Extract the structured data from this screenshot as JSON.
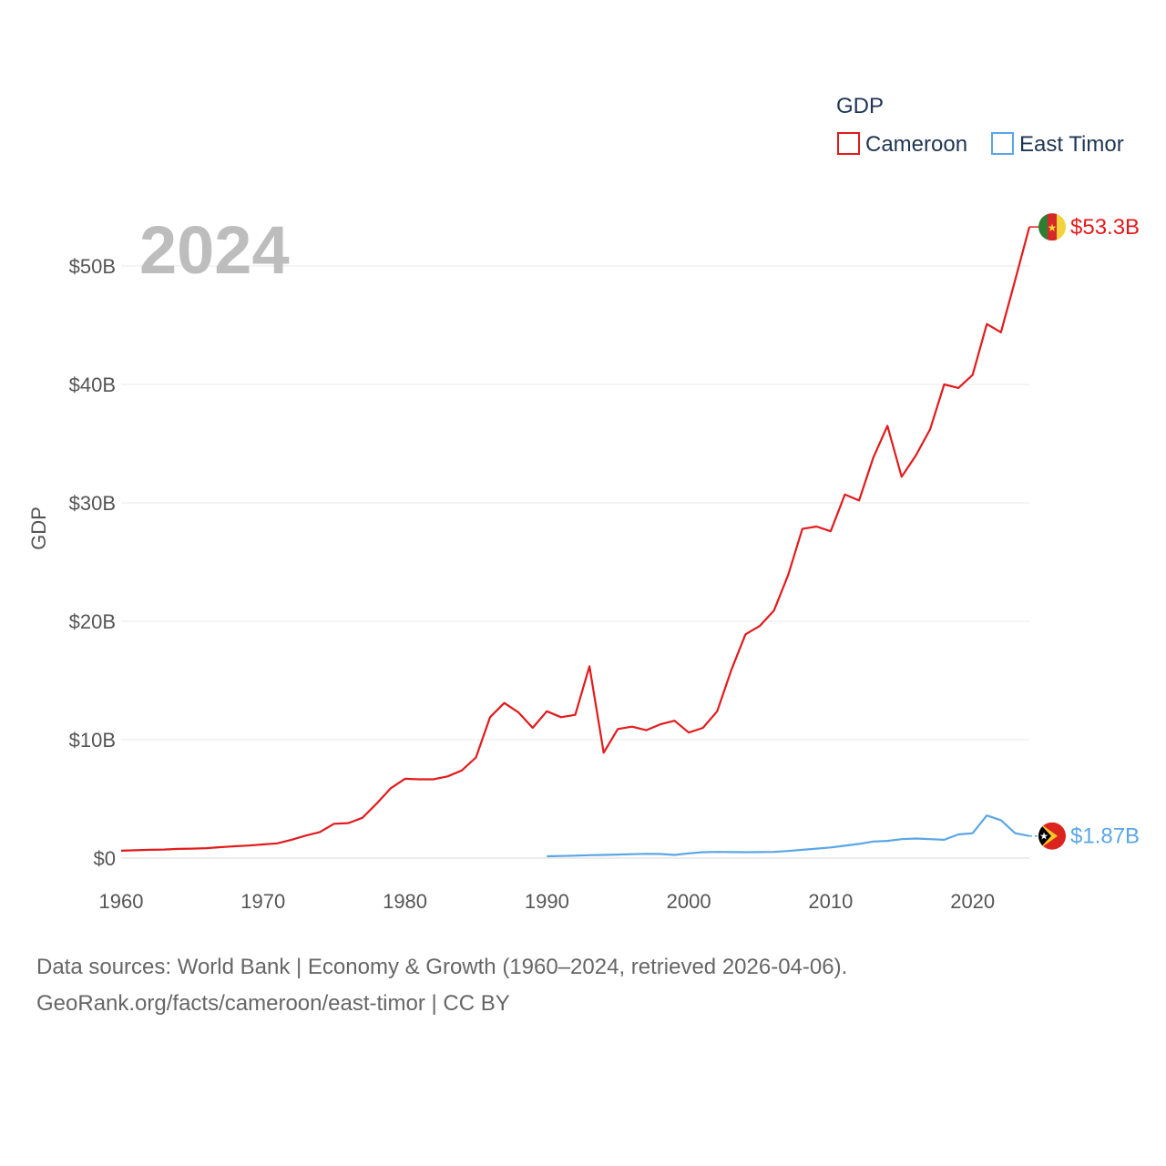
{
  "chart_data": {
    "type": "line",
    "title": "",
    "ylabel": "GDP",
    "xlabel": "",
    "highlight_year": "2024",
    "legend": {
      "title": "GDP",
      "position": "top-right"
    },
    "xlim": [
      1960,
      2024
    ],
    "ylim": [
      0,
      55
    ],
    "x_ticks": [
      1960,
      1970,
      1980,
      1990,
      2000,
      2010,
      2020
    ],
    "y_ticks": [
      {
        "value": 0,
        "label": "$0"
      },
      {
        "value": 10,
        "label": "$10B"
      },
      {
        "value": 20,
        "label": "$20B"
      },
      {
        "value": 30,
        "label": "$30B"
      },
      {
        "value": 40,
        "label": "$40B"
      },
      {
        "value": 50,
        "label": "$50B"
      }
    ],
    "units": "billions USD",
    "grid": true,
    "series": [
      {
        "name": "Cameroon",
        "color": "#e31a1c",
        "end_label": "$53.3B",
        "flag": "cameroon-flag",
        "x": [
          1960,
          1961,
          1962,
          1963,
          1964,
          1965,
          1966,
          1967,
          1968,
          1969,
          1970,
          1971,
          1972,
          1973,
          1974,
          1975,
          1976,
          1977,
          1978,
          1979,
          1980,
          1981,
          1982,
          1983,
          1984,
          1985,
          1986,
          1987,
          1988,
          1989,
          1990,
          1991,
          1992,
          1993,
          1994,
          1995,
          1996,
          1997,
          1998,
          1999,
          2000,
          2001,
          2002,
          2003,
          2004,
          2005,
          2006,
          2007,
          2008,
          2009,
          2010,
          2011,
          2012,
          2013,
          2014,
          2015,
          2016,
          2017,
          2018,
          2019,
          2020,
          2021,
          2022,
          2023,
          2024
        ],
        "values": [
          0.62,
          0.66,
          0.7,
          0.72,
          0.78,
          0.8,
          0.84,
          0.92,
          1.0,
          1.06,
          1.15,
          1.25,
          1.55,
          1.9,
          2.2,
          2.9,
          2.95,
          3.4,
          4.6,
          5.9,
          6.7,
          6.65,
          6.65,
          6.9,
          7.4,
          8.5,
          11.9,
          13.1,
          12.3,
          11.0,
          12.4,
          11.9,
          12.1,
          16.2,
          8.9,
          10.9,
          11.1,
          10.8,
          11.3,
          11.6,
          10.6,
          11.0,
          12.4,
          15.9,
          18.9,
          19.6,
          20.9,
          23.9,
          27.8,
          28.0,
          27.6,
          30.7,
          30.2,
          33.8,
          36.5,
          32.2,
          34.0,
          36.2,
          40.0,
          39.7,
          40.8,
          45.1,
          44.4,
          48.8,
          53.3
        ]
      },
      {
        "name": "East Timor",
        "color": "#5aa6e6",
        "end_label": "$1.87B",
        "flag": "east-timor-flag",
        "x": [
          1990,
          1991,
          1992,
          1993,
          1994,
          1995,
          1996,
          1997,
          1998,
          1999,
          2000,
          2001,
          2002,
          2003,
          2004,
          2005,
          2006,
          2007,
          2008,
          2009,
          2010,
          2011,
          2012,
          2013,
          2014,
          2015,
          2016,
          2017,
          2018,
          2019,
          2020,
          2021,
          2022,
          2023,
          2024
        ],
        "values": [
          0.15,
          0.18,
          0.21,
          0.25,
          0.27,
          0.3,
          0.33,
          0.36,
          0.35,
          0.27,
          0.4,
          0.5,
          0.52,
          0.51,
          0.5,
          0.51,
          0.52,
          0.6,
          0.7,
          0.8,
          0.9,
          1.05,
          1.2,
          1.4,
          1.45,
          1.6,
          1.65,
          1.6,
          1.55,
          2.0,
          2.1,
          3.6,
          3.2,
          2.1,
          1.87
        ]
      }
    ]
  },
  "footer": {
    "line1": "Data sources: World Bank | Economy & Growth (1960–2024, retrieved 2026-04-06).",
    "line2": "GeoRank.org/facts/cameroon/east-timor | CC BY"
  }
}
